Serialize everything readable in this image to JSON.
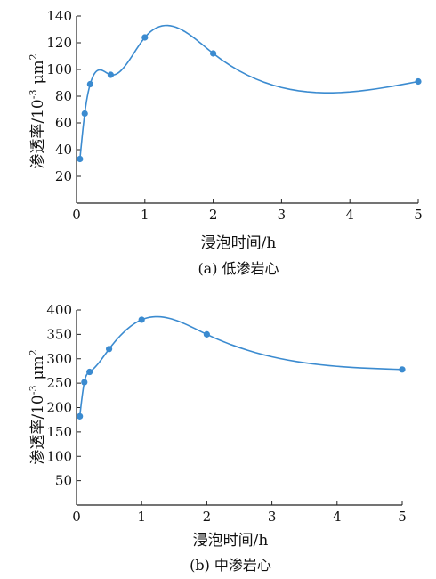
{
  "chart_data": [
    {
      "type": "line",
      "caption": "(a) 低渗岩心",
      "xlabel": "浸泡时间/h",
      "ylabel": "渗透率/10",
      "ylabel_exp": "-3",
      "ylabel_unit": "μm",
      "ylabel_unit_exp": "2",
      "xlim": [
        0,
        5
      ],
      "ylim": [
        0,
        140
      ],
      "x_ticks": [
        "0",
        "1",
        "2",
        "3",
        "4",
        "5"
      ],
      "y_ticks": [
        "20",
        "40",
        "60",
        "80",
        "100",
        "120",
        "140"
      ],
      "series": [
        {
          "x": [
            0.05,
            0.12,
            0.2,
            0.5,
            1,
            2,
            5
          ],
          "y": [
            33,
            67,
            89,
            96,
            124,
            112,
            91
          ]
        }
      ],
      "color": "#3b8bd0",
      "grid": false
    },
    {
      "type": "line",
      "caption": "(b) 中渗岩心",
      "xlabel": "浸泡时间/h",
      "ylabel": "渗透率/10",
      "ylabel_exp": "-3",
      "ylabel_unit": "μm",
      "ylabel_unit_exp": "2",
      "xlim": [
        0,
        5
      ],
      "ylim": [
        0,
        400
      ],
      "x_ticks": [
        "0",
        "1",
        "2",
        "3",
        "4",
        "5"
      ],
      "y_ticks": [
        "50",
        "100",
        "150",
        "200",
        "250",
        "300",
        "350",
        "400"
      ],
      "series": [
        {
          "x": [
            0.05,
            0.12,
            0.2,
            0.5,
            1,
            2,
            5
          ],
          "y": [
            182,
            252,
            273,
            320,
            380,
            350,
            278
          ]
        }
      ],
      "color": "#3b8bd0",
      "grid": false
    }
  ]
}
